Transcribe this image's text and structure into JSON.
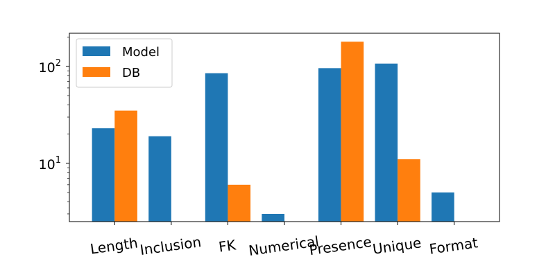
{
  "chart_data": {
    "type": "bar",
    "title": "",
    "xlabel": "",
    "ylabel": "",
    "yscale": "log",
    "ylim": [
      2.5,
      220
    ],
    "y_ticks": [
      {
        "value": 10,
        "base": "10",
        "exponent": "1"
      },
      {
        "value": 100,
        "base": "10",
        "exponent": "2"
      }
    ],
    "grid": false,
    "legend_position": "top-left",
    "categories": [
      "Length",
      "Inclusion",
      "FK",
      "Numerical",
      "Presence",
      "Unique",
      "Format"
    ],
    "series": [
      {
        "name": "Model",
        "color": "#1f77b4",
        "values": [
          23,
          19,
          85,
          3,
          96,
          107,
          5
        ]
      },
      {
        "name": "DB",
        "color": "#ff7f0e",
        "values": [
          35,
          null,
          6,
          null,
          180,
          11,
          null
        ]
      }
    ],
    "x_tick_rotation_deg": -8
  }
}
